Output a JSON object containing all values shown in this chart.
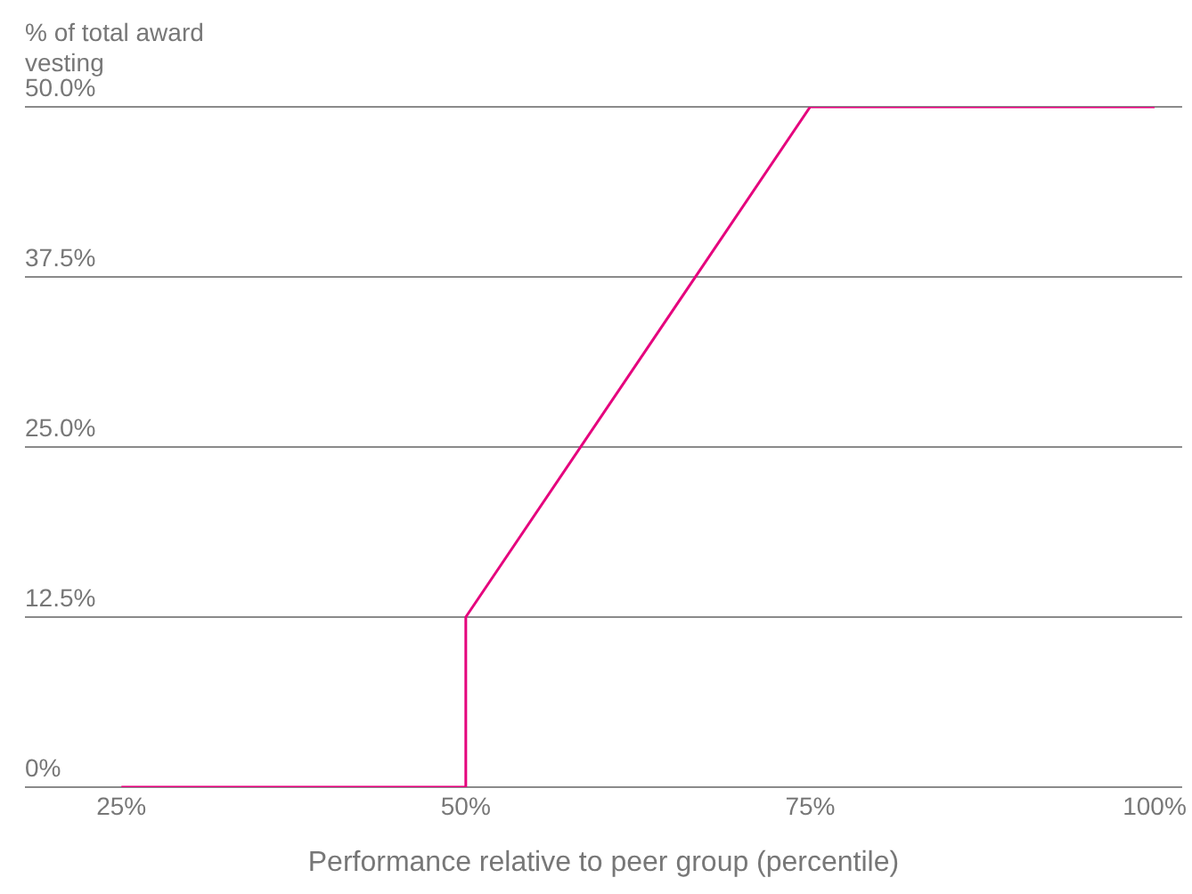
{
  "chart_data": {
    "type": "line",
    "xlabel": "Performance relative to peer group (percentile)",
    "ylabel": "% of total award vesting",
    "x": [
      25,
      50,
      50,
      75,
      100
    ],
    "series": [
      {
        "color": "#e5007d",
        "values": [
          0,
          0,
          12.5,
          50,
          50
        ]
      }
    ],
    "xlim": [
      18,
      102
    ],
    "xticks": [
      {
        "value": 25,
        "label": "25%"
      },
      {
        "value": 50,
        "label": "50%"
      },
      {
        "value": 75,
        "label": "75%"
      },
      {
        "value": 100,
        "label": "100%"
      }
    ],
    "ylim": [
      0,
      50
    ],
    "yticks": [
      {
        "value": 0,
        "label": "0%"
      },
      {
        "value": 12.5,
        "label": "12.5%"
      },
      {
        "value": 25,
        "label": "25.0%"
      },
      {
        "value": 37.5,
        "label": "37.5%"
      },
      {
        "value": 50,
        "label": "50.0%"
      }
    ],
    "grid": "y",
    "legend": false,
    "marker": "none",
    "line_style": "solid"
  }
}
